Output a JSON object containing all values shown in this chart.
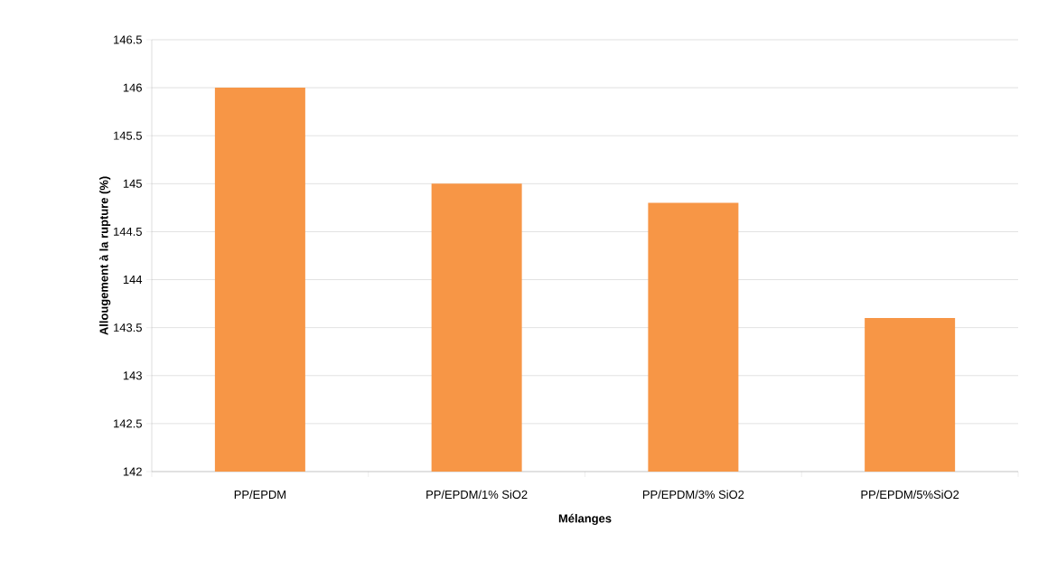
{
  "chart_data": {
    "type": "bar",
    "xlabel": "Mélanges",
    "ylabel": "Allougement à la rupture (%)",
    "categories": [
      "PP/EPDM",
      "PP/EPDM/1% SiO2",
      "PP/EPDM/3% SiO2",
      "PP/EPDM/5%SiO2"
    ],
    "values": [
      146,
      145,
      144.8,
      143.6
    ],
    "color": "#f79646",
    "ylim": [
      142,
      146.5
    ],
    "yticks": [
      142,
      142.5,
      143,
      143.5,
      144,
      144.5,
      145,
      145.5,
      146,
      146.5
    ],
    "grid": "y"
  }
}
